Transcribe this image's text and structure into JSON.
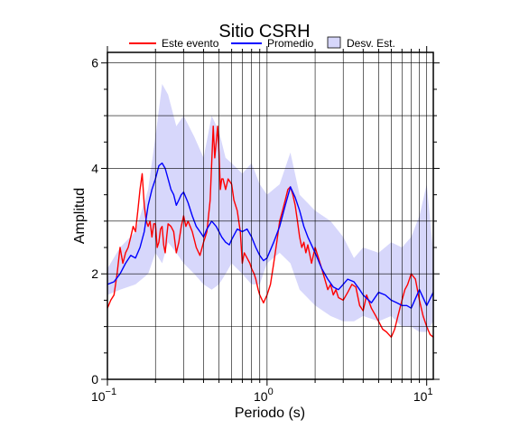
{
  "chart_data": {
    "type": "line",
    "title": "Sitio CSRH",
    "xlabel": "Periodo (s)",
    "ylabel": "Amplitud",
    "xscale": "log",
    "xlim": [
      0.1,
      11.0
    ],
    "ylim": [
      0,
      6.2
    ],
    "grid": true,
    "legend_position": "top",
    "x_ticks": [
      {
        "value": 0.1,
        "base": "10",
        "exp": "−1"
      },
      {
        "value": 1,
        "base": "10",
        "exp": "0"
      },
      {
        "value": 10,
        "base": "10",
        "exp": "1"
      }
    ],
    "y_ticks": [
      {
        "value": 0,
        "label": "0"
      },
      {
        "value": 2,
        "label": "2"
      },
      {
        "value": 4,
        "label": "4"
      },
      {
        "value": 6,
        "label": "6"
      }
    ],
    "legend": [
      {
        "label": "Este evento",
        "kind": "line",
        "color": "#ff0000"
      },
      {
        "label": "Promedio",
        "kind": "line",
        "color": "#0000ff"
      },
      {
        "label": "Desv. Est.",
        "kind": "area",
        "color": "#d7d7fb"
      }
    ],
    "band": {
      "name": "Desv. Est.",
      "color": "#d7d7fb",
      "x": [
        0.1,
        0.12,
        0.15,
        0.18,
        0.2,
        0.22,
        0.24,
        0.27,
        0.3,
        0.35,
        0.4,
        0.45,
        0.5,
        0.55,
        0.6,
        0.7,
        0.8,
        0.9,
        1.0,
        1.2,
        1.4,
        1.6,
        2.0,
        2.5,
        3.0,
        3.5,
        4.0,
        5.0,
        6.0,
        7.0,
        8.0,
        9.0,
        10.0,
        11.0
      ],
      "upper": [
        2.1,
        2.5,
        2.8,
        3.6,
        4.6,
        5.6,
        5.4,
        4.8,
        5.0,
        4.6,
        4.2,
        5.0,
        4.7,
        4.2,
        4.1,
        3.9,
        4.1,
        3.7,
        3.5,
        3.7,
        4.3,
        3.5,
        3.2,
        3.0,
        2.7,
        2.3,
        2.5,
        2.4,
        2.6,
        2.5,
        2.7,
        3.1,
        3.7,
        2.4
      ],
      "lower": [
        1.6,
        1.7,
        1.8,
        2.0,
        2.4,
        2.2,
        2.6,
        2.4,
        2.2,
        2.0,
        1.8,
        1.7,
        1.8,
        2.0,
        2.2,
        2.0,
        1.8,
        1.8,
        2.2,
        2.4,
        2.2,
        1.7,
        1.4,
        1.2,
        1.1,
        1.1,
        1.2,
        1.1,
        1.2,
        1.0,
        1.0,
        0.9,
        0.9,
        1.1
      ]
    },
    "series": [
      {
        "name": "Este evento",
        "color": "#ff0000",
        "x": [
          0.1,
          0.105,
          0.11,
          0.115,
          0.12,
          0.125,
          0.13,
          0.135,
          0.14,
          0.145,
          0.15,
          0.155,
          0.16,
          0.165,
          0.17,
          0.175,
          0.18,
          0.185,
          0.19,
          0.195,
          0.2,
          0.205,
          0.21,
          0.215,
          0.22,
          0.225,
          0.23,
          0.235,
          0.24,
          0.25,
          0.26,
          0.27,
          0.28,
          0.29,
          0.3,
          0.31,
          0.32,
          0.34,
          0.36,
          0.38,
          0.4,
          0.42,
          0.44,
          0.46,
          0.47,
          0.48,
          0.49,
          0.5,
          0.51,
          0.52,
          0.53,
          0.55,
          0.57,
          0.6,
          0.62,
          0.65,
          0.68,
          0.7,
          0.72,
          0.75,
          0.78,
          0.8,
          0.83,
          0.85,
          0.88,
          0.9,
          0.95,
          1.0,
          1.05,
          1.1,
          1.15,
          1.2,
          1.25,
          1.3,
          1.35,
          1.4,
          1.45,
          1.5,
          1.55,
          1.6,
          1.65,
          1.7,
          1.75,
          1.8,
          1.9,
          2.0,
          2.1,
          2.2,
          2.3,
          2.4,
          2.5,
          2.6,
          2.7,
          2.8,
          3.0,
          3.2,
          3.4,
          3.6,
          3.8,
          4.0,
          4.2,
          4.5,
          4.8,
          5.0,
          5.3,
          5.6,
          6.0,
          6.3,
          6.6,
          7.0,
          7.3,
          7.6,
          8.0,
          8.5,
          9.0,
          9.5,
          10.0,
          10.5,
          11.0
        ],
        "y": [
          1.35,
          1.5,
          1.6,
          2.0,
          2.5,
          2.2,
          2.4,
          2.5,
          2.7,
          2.9,
          2.8,
          3.2,
          3.6,
          3.9,
          3.3,
          3.0,
          2.9,
          3.0,
          2.7,
          2.95,
          2.95,
          2.5,
          2.6,
          2.85,
          2.9,
          2.55,
          2.4,
          2.7,
          2.95,
          2.9,
          2.8,
          2.4,
          2.6,
          2.9,
          3.1,
          2.9,
          3.0,
          2.8,
          2.5,
          2.35,
          2.6,
          2.8,
          3.4,
          4.8,
          4.2,
          4.5,
          4.8,
          4.3,
          3.6,
          3.8,
          3.8,
          3.6,
          3.8,
          3.7,
          3.4,
          3.2,
          2.8,
          2.2,
          2.4,
          2.3,
          2.2,
          2.1,
          2.0,
          1.9,
          1.7,
          1.6,
          1.45,
          1.6,
          1.8,
          2.2,
          2.6,
          3.0,
          3.2,
          3.4,
          3.6,
          3.65,
          3.5,
          3.3,
          3.0,
          2.7,
          2.5,
          2.6,
          2.4,
          2.55,
          2.2,
          2.5,
          2.3,
          2.1,
          1.9,
          1.7,
          1.8,
          1.6,
          1.7,
          1.55,
          1.5,
          1.65,
          1.8,
          1.75,
          1.4,
          1.3,
          1.6,
          1.35,
          1.2,
          1.1,
          0.95,
          0.9,
          0.8,
          0.95,
          1.2,
          1.5,
          1.7,
          1.8,
          2.0,
          1.9,
          1.5,
          1.2,
          1.0,
          0.85,
          0.8
        ]
      },
      {
        "name": "Promedio",
        "color": "#0000ff",
        "x": [
          0.1,
          0.11,
          0.12,
          0.13,
          0.14,
          0.15,
          0.16,
          0.17,
          0.18,
          0.19,
          0.2,
          0.21,
          0.22,
          0.23,
          0.24,
          0.25,
          0.26,
          0.27,
          0.28,
          0.29,
          0.3,
          0.32,
          0.34,
          0.36,
          0.38,
          0.4,
          0.42,
          0.45,
          0.48,
          0.5,
          0.52,
          0.55,
          0.58,
          0.6,
          0.65,
          0.7,
          0.75,
          0.8,
          0.85,
          0.9,
          0.95,
          1.0,
          1.1,
          1.2,
          1.3,
          1.4,
          1.5,
          1.6,
          1.7,
          1.8,
          2.0,
          2.2,
          2.4,
          2.6,
          2.8,
          3.0,
          3.2,
          3.5,
          3.8,
          4.0,
          4.5,
          5.0,
          5.5,
          6.0,
          6.5,
          7.0,
          7.5,
          8.0,
          9.0,
          10.0,
          11.0
        ],
        "y": [
          1.8,
          1.85,
          2.0,
          2.2,
          2.35,
          2.3,
          2.5,
          2.8,
          3.3,
          3.6,
          3.8,
          4.05,
          4.1,
          4.0,
          3.8,
          3.6,
          3.5,
          3.3,
          3.4,
          3.5,
          3.55,
          3.35,
          3.1,
          2.9,
          2.8,
          2.7,
          2.85,
          3.0,
          2.9,
          2.8,
          2.7,
          2.6,
          2.55,
          2.65,
          2.85,
          2.8,
          2.85,
          2.7,
          2.5,
          2.35,
          2.25,
          2.3,
          2.6,
          2.9,
          3.3,
          3.65,
          3.45,
          3.2,
          2.9,
          2.7,
          2.4,
          2.1,
          1.9,
          1.75,
          1.7,
          1.8,
          1.9,
          1.85,
          1.7,
          1.6,
          1.45,
          1.65,
          1.6,
          1.5,
          1.45,
          1.4,
          1.4,
          1.35,
          1.7,
          1.4,
          1.65
        ]
      }
    ]
  }
}
